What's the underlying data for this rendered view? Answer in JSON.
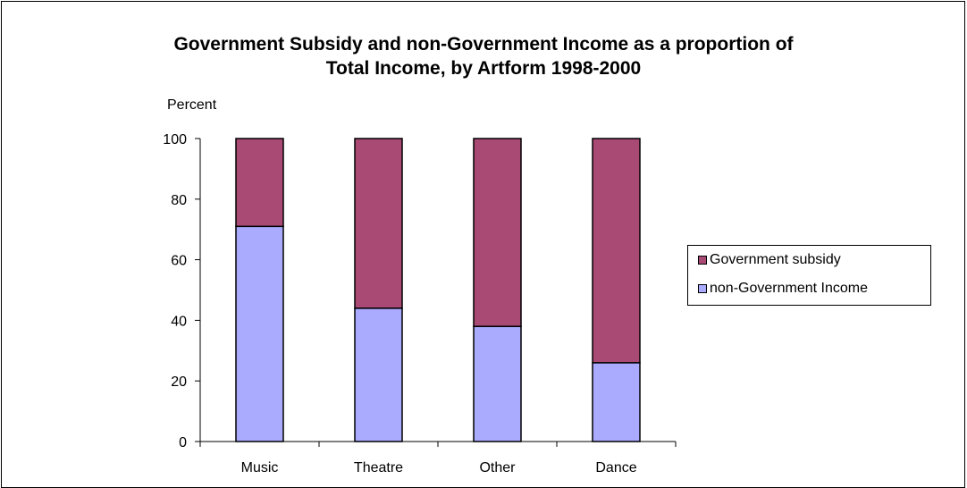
{
  "chart_data": {
    "type": "bar",
    "stacked": true,
    "title_lines": [
      "Government Subsidy and non-Government Income as a proportion of",
      "Total Income, by Artform 1998-2000"
    ],
    "ylabel": "Percent",
    "xlabel": "",
    "categories": [
      "Music",
      "Theatre",
      "Other",
      "Dance"
    ],
    "ylim": [
      0,
      100
    ],
    "yticks": [
      0,
      20,
      40,
      60,
      80,
      100
    ],
    "series": [
      {
        "name": "non-Government Income",
        "color": "#AAAAFF",
        "values": [
          71,
          44,
          38,
          26
        ]
      },
      {
        "name": "Government subsidy",
        "color": "#A84A74",
        "values": [
          29,
          56,
          62,
          74
        ]
      }
    ],
    "legend": {
      "position": "right",
      "entries": [
        "Government subsidy",
        "non-Government Income"
      ]
    },
    "grid": false
  }
}
